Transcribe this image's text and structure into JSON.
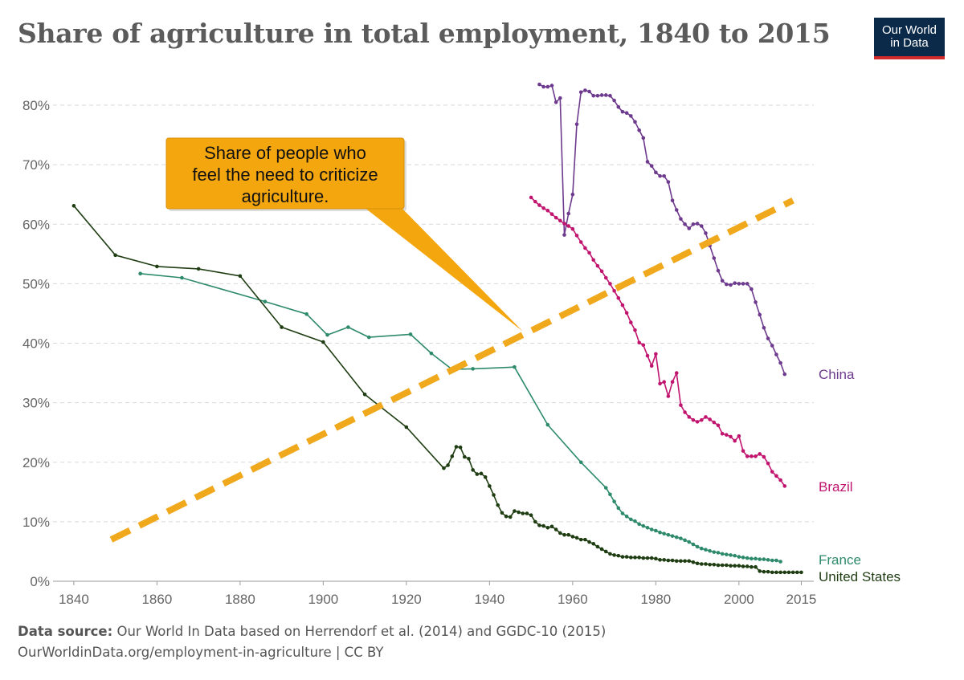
{
  "header": {
    "title": "Share of agriculture in total employment, 1840 to 2015",
    "logo_line1": "Our World",
    "logo_line2": "in Data"
  },
  "footer": {
    "source_label": "Data source:",
    "source_text": "Our World In Data based on Herrendorf et al. (2014) and GGDC-10 (2015)",
    "url_text": "OurWorldinData.org/employment-in-agriculture | CC BY"
  },
  "colors": {
    "china": "#6d3a8e",
    "brazil": "#c0146e",
    "france": "#2e8a6c",
    "us": "#1f3d12",
    "trend": "#f0a81c",
    "callout": "#f4a60f",
    "grid": "#d8d8d8"
  },
  "annotation": {
    "lines": [
      "Share of people who",
      "feel the need to criticize",
      "agriculture."
    ]
  },
  "chart_data": {
    "type": "line",
    "title": "Share of agriculture in total employment, 1840 to 2015",
    "xlim": [
      1835,
      2018
    ],
    "ylim": [
      0,
      85
    ],
    "x_ticks": [
      1840,
      1860,
      1880,
      1900,
      1920,
      1940,
      1960,
      1980,
      2000,
      2015
    ],
    "y_ticks": [
      0,
      10,
      20,
      30,
      40,
      50,
      60,
      70,
      80
    ],
    "y_tick_labels": [
      "0%",
      "10%",
      "20%",
      "30%",
      "40%",
      "50%",
      "60%",
      "70%",
      "80%"
    ],
    "grid": true,
    "series": [
      {
        "name": "China",
        "label": "China",
        "color_key": "china",
        "x": [
          1952,
          1953,
          1954,
          1955,
          1956,
          1957,
          1958,
          1959,
          1960,
          1961,
          1962,
          1963,
          1964,
          1965,
          1966,
          1967,
          1968,
          1969,
          1970,
          1971,
          1972,
          1973,
          1974,
          1975,
          1976,
          1977,
          1978,
          1979,
          1980,
          1981,
          1982,
          1983,
          1984,
          1985,
          1986,
          1987,
          1988,
          1989,
          1990,
          1991,
          1992,
          1993,
          1994,
          1995,
          1996,
          1997,
          1998,
          1999,
          2000,
          2001,
          2002,
          2003,
          2004,
          2005,
          2006,
          2007,
          2008,
          2009,
          2010,
          2011
        ],
        "y": [
          83.5,
          83.1,
          83.1,
          83.3,
          80.5,
          81.2,
          58.2,
          61.8,
          65.0,
          76.8,
          82.2,
          82.5,
          82.3,
          81.6,
          81.6,
          81.7,
          81.7,
          81.6,
          80.8,
          79.7,
          78.9,
          78.7,
          78.2,
          77.2,
          75.8,
          74.5,
          70.5,
          69.8,
          68.7,
          68.1,
          68.1,
          67.1,
          64.0,
          62.4,
          60.9,
          60.0,
          59.3,
          60.0,
          60.1,
          59.7,
          58.5,
          56.4,
          54.3,
          52.2,
          50.5,
          49.9,
          49.8,
          50.1,
          50.0,
          50.0,
          50.0,
          49.1,
          46.9,
          44.8,
          42.6,
          40.8,
          39.6,
          38.1,
          36.7,
          34.8
        ],
        "markers": true
      },
      {
        "name": "Brazil",
        "label": "Brazil",
        "color_key": "brazil",
        "x": [
          1950,
          1951,
          1952,
          1953,
          1954,
          1955,
          1956,
          1957,
          1958,
          1959,
          1960,
          1961,
          1962,
          1963,
          1964,
          1965,
          1966,
          1967,
          1968,
          1969,
          1970,
          1971,
          1972,
          1973,
          1974,
          1975,
          1976,
          1977,
          1978,
          1979,
          1980,
          1981,
          1982,
          1983,
          1984,
          1985,
          1986,
          1987,
          1988,
          1989,
          1990,
          1991,
          1992,
          1993,
          1994,
          1995,
          1996,
          1997,
          1998,
          1999,
          2000,
          2001,
          2002,
          2003,
          2004,
          2005,
          2006,
          2007,
          2008,
          2009,
          2010,
          2011
        ],
        "y": [
          64.5,
          63.8,
          63.2,
          62.7,
          62.3,
          61.7,
          61.1,
          60.6,
          60.1,
          59.7,
          59.2,
          58.1,
          57.0,
          56.0,
          55.2,
          54.0,
          53.0,
          52.1,
          51.0,
          50.0,
          48.8,
          47.6,
          46.4,
          45.1,
          43.5,
          42.2,
          40.1,
          39.7,
          37.9,
          36.2,
          38.2,
          33.2,
          33.5,
          31.1,
          33.5,
          35.0,
          29.6,
          28.4,
          27.6,
          27.1,
          26.8,
          27.1,
          27.6,
          27.2,
          26.7,
          26.2,
          24.8,
          24.6,
          24.3,
          23.6,
          24.4,
          21.9,
          21.0,
          21.0,
          21.0,
          21.4,
          20.9,
          19.8,
          18.4,
          17.7,
          17.0,
          16.0
        ],
        "markers": true
      },
      {
        "name": "France",
        "label": "France",
        "color_key": "france",
        "x": [
          1856,
          1866,
          1886,
          1896,
          1901,
          1906,
          1911,
          1921,
          1926,
          1931,
          1936,
          1946,
          1954,
          1962,
          1968,
          1969,
          1970,
          1971,
          1972,
          1973,
          1974,
          1975,
          1976,
          1977,
          1978,
          1979,
          1980,
          1981,
          1982,
          1983,
          1984,
          1985,
          1986,
          1987,
          1988,
          1989,
          1990,
          1991,
          1992,
          1993,
          1994,
          1995,
          1996,
          1997,
          1998,
          1999,
          2000,
          2001,
          2002,
          2003,
          2004,
          2005,
          2006,
          2007,
          2008,
          2009,
          2010
        ],
        "y": [
          51.7,
          51.0,
          47.0,
          44.9,
          41.4,
          42.7,
          41.0,
          41.5,
          38.3,
          35.6,
          35.7,
          36.0,
          26.3,
          20.0,
          15.7,
          14.6,
          13.4,
          12.3,
          11.4,
          10.9,
          10.4,
          10.1,
          9.6,
          9.3,
          9.0,
          8.7,
          8.5,
          8.2,
          8.0,
          7.8,
          7.6,
          7.4,
          7.2,
          6.9,
          6.6,
          6.2,
          5.8,
          5.5,
          5.3,
          5.1,
          4.9,
          4.8,
          4.6,
          4.5,
          4.4,
          4.3,
          4.1,
          4.0,
          3.9,
          3.8,
          3.8,
          3.7,
          3.7,
          3.6,
          3.5,
          3.5,
          3.3
        ],
        "markers": true
      },
      {
        "name": "United States",
        "label": "United States",
        "color_key": "us",
        "x": [
          1840,
          1850,
          1860,
          1870,
          1880,
          1890,
          1900,
          1910,
          1920,
          1929,
          1930,
          1931,
          1932,
          1933,
          1934,
          1935,
          1936,
          1937,
          1938,
          1939,
          1940,
          1941,
          1942,
          1943,
          1944,
          1945,
          1946,
          1947,
          1948,
          1949,
          1950,
          1951,
          1952,
          1953,
          1954,
          1955,
          1956,
          1957,
          1958,
          1959,
          1960,
          1961,
          1962,
          1963,
          1964,
          1965,
          1966,
          1967,
          1968,
          1969,
          1970,
          1971,
          1972,
          1973,
          1974,
          1975,
          1976,
          1977,
          1978,
          1979,
          1980,
          1981,
          1982,
          1983,
          1984,
          1985,
          1986,
          1987,
          1988,
          1989,
          1990,
          1991,
          1992,
          1993,
          1994,
          1995,
          1996,
          1997,
          1998,
          1999,
          2000,
          2001,
          2002,
          2003,
          2004,
          2005,
          2006,
          2007,
          2008,
          2009,
          2010,
          2011,
          2012,
          2013,
          2014,
          2015
        ],
        "y": [
          63.1,
          54.8,
          52.9,
          52.5,
          51.3,
          42.7,
          40.2,
          31.4,
          25.9,
          19.0,
          19.5,
          21.0,
          22.6,
          22.5,
          20.9,
          20.6,
          18.7,
          18.0,
          18.1,
          17.5,
          16.0,
          14.5,
          12.8,
          11.5,
          10.9,
          10.8,
          11.8,
          11.6,
          11.4,
          11.4,
          11.1,
          10.0,
          9.4,
          9.3,
          9.0,
          9.2,
          8.7,
          8.1,
          7.8,
          7.8,
          7.5,
          7.3,
          7.0,
          7.0,
          6.6,
          6.3,
          5.8,
          5.4,
          5.0,
          4.6,
          4.4,
          4.3,
          4.1,
          4.1,
          4.0,
          4.0,
          4.0,
          3.9,
          3.9,
          3.9,
          3.8,
          3.6,
          3.6,
          3.5,
          3.5,
          3.4,
          3.4,
          3.4,
          3.4,
          3.2,
          3.0,
          2.9,
          2.9,
          2.8,
          2.8,
          2.7,
          2.7,
          2.7,
          2.6,
          2.6,
          2.6,
          2.5,
          2.5,
          2.4,
          2.4,
          1.7,
          1.6,
          1.6,
          1.5,
          1.5,
          1.5,
          1.5,
          1.5,
          1.5,
          1.5,
          1.5
        ],
        "markers": true
      },
      {
        "name": "Share of people who feel the need to criticize agriculture (trend)",
        "color_key": "trend",
        "dashed": true,
        "x": [
          1849,
          2013
        ],
        "y": [
          7.0,
          64.0
        ]
      }
    ],
    "annotations": [
      {
        "text": "Share of people who feel the need to criticize agriculture.",
        "points_to": {
          "x": 1948,
          "y": 42
        }
      }
    ]
  }
}
